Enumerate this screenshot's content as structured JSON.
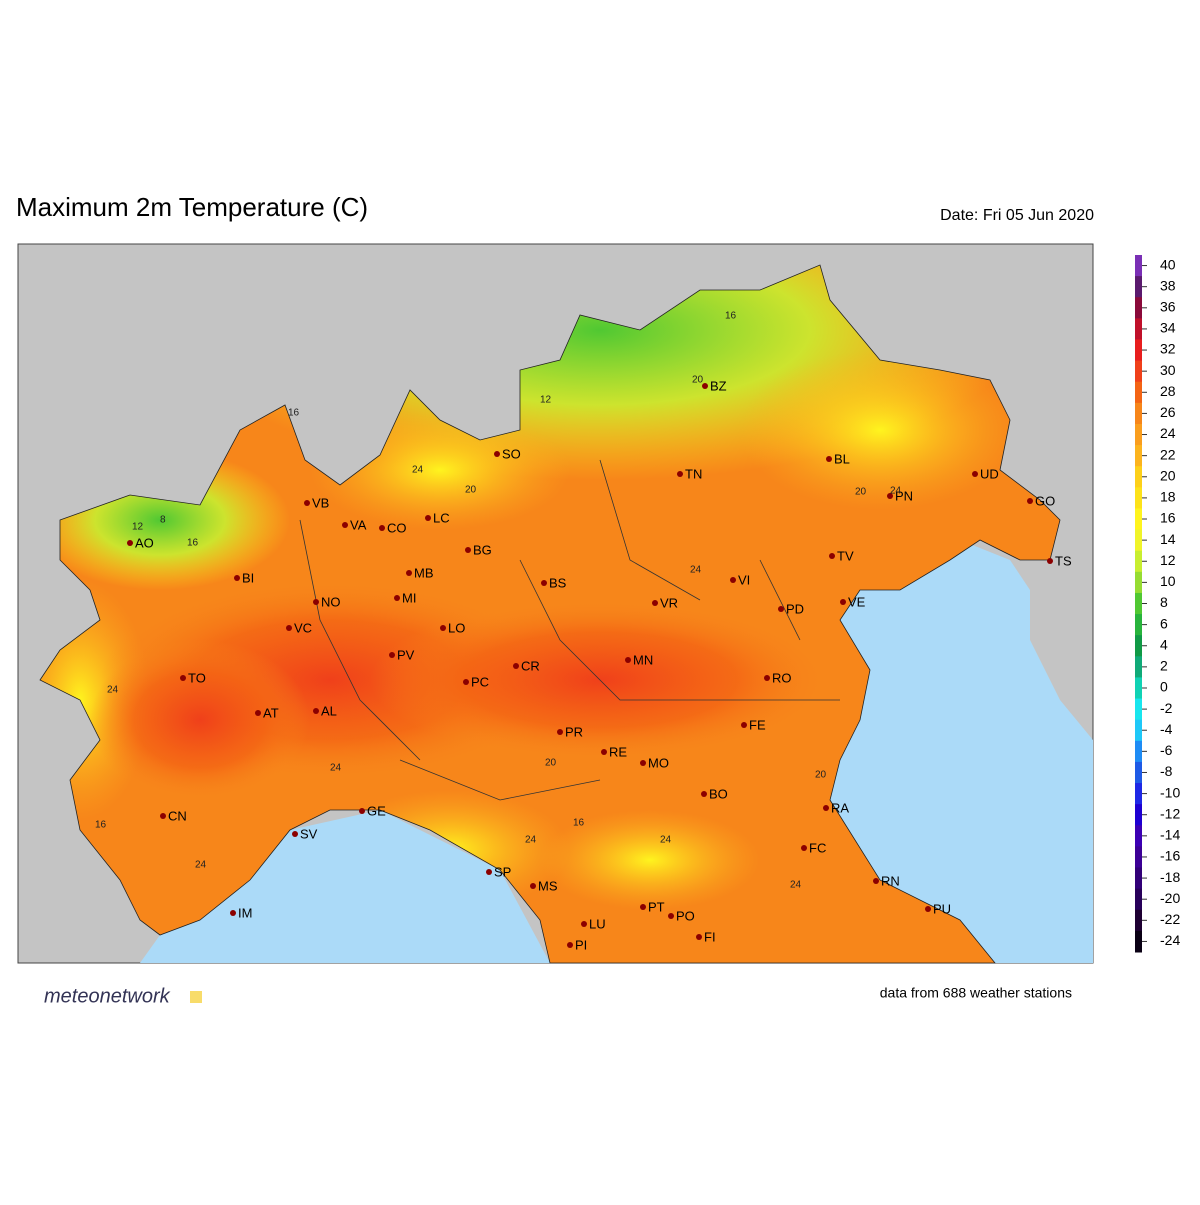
{
  "header": {
    "title": "Maximum 2m Temperature (C)",
    "date": "Date: Fri 05 Jun 2020"
  },
  "map": {
    "cities": [
      "AO",
      "VB",
      "VA",
      "CO",
      "LC",
      "SO",
      "BZ",
      "TN",
      "BL",
      "UD",
      "PN",
      "GO",
      "TS",
      "BI",
      "BG",
      "MB",
      "BS",
      "TV",
      "VI",
      "NO",
      "MI",
      "VR",
      "PD",
      "VE",
      "VC",
      "LO",
      "PV",
      "MN",
      "CR",
      "PC",
      "TO",
      "RO",
      "AT",
      "AL",
      "FE",
      "PR",
      "RE",
      "MO",
      "BO",
      "CN",
      "GE",
      "SV",
      "RA",
      "FC",
      "SP",
      "MS",
      "RN",
      "PU",
      "IM",
      "PT",
      "PO",
      "LU",
      "FI",
      "PI"
    ],
    "contour_labels": [
      "12",
      "8",
      "16",
      "16",
      "12",
      "20",
      "20",
      "24",
      "24",
      "24",
      "24",
      "20",
      "16",
      "16",
      "24",
      "24",
      "20",
      "24",
      "20",
      "16",
      "24",
      "24"
    ]
  },
  "colorbar": {
    "ticks": [
      40,
      38,
      36,
      34,
      32,
      30,
      28,
      26,
      24,
      22,
      20,
      18,
      16,
      14,
      12,
      10,
      8,
      6,
      4,
      2,
      0,
      -2,
      -4,
      -6,
      -8,
      -10,
      -12,
      -14,
      -16,
      -18,
      -20,
      -22,
      -24
    ],
    "colors": [
      "#7a2fb5",
      "#5a1a6e",
      "#8a0a3a",
      "#c0102a",
      "#e81e1e",
      "#f0401a",
      "#f46414",
      "#f7861a",
      "#fa9e1e",
      "#fcb41e",
      "#fdd01a",
      "#fde21a",
      "#fff41e",
      "#f0f42a",
      "#c8ee30",
      "#96dc32",
      "#50c832",
      "#28b43c",
      "#109a46",
      "#10aa78",
      "#10d2b4",
      "#18e6ee",
      "#1ec8f8",
      "#1e8cf5",
      "#1e5ae6",
      "#1e28e6",
      "#1e00d2",
      "#3c00b4",
      "#3c0096",
      "#320078",
      "#28005a",
      "#1e0032",
      "#0a0014"
    ]
  },
  "footer": {
    "brand": "meteonetwork",
    "note": "data from 688 weather stations"
  }
}
